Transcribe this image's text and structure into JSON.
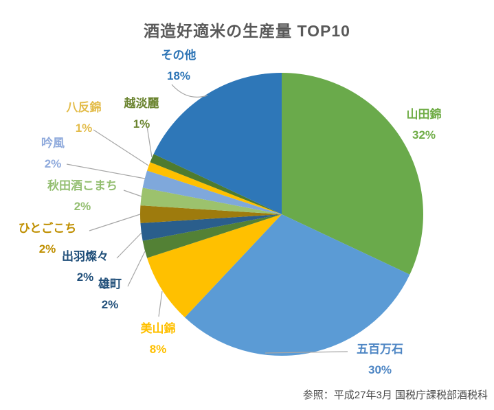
{
  "title": "酒造好適米の生産量 TOP10",
  "source_note": "参照：平成27年3月 国税庁課税部酒税科",
  "chart_data": {
    "type": "pie",
    "title": "酒造好適米の生産量 TOP10",
    "unit": "percent",
    "start_angle_deg": 0,
    "direction": "clockwise",
    "legend_position": "none",
    "labels_position": "outside-with-leader-lines",
    "annotation": "参照：平成27年3月 国税庁課税部酒税科",
    "leader_line_color": "#a6a6a6",
    "slices": [
      {
        "label": "山田錦",
        "value": 32,
        "display_value": "32%",
        "color": "#6AAA4B",
        "label_color": "#70AD47"
      },
      {
        "label": "五百万石",
        "value": 30,
        "display_value": "30%",
        "color": "#5B9BD5",
        "label_color": "#4E86C4"
      },
      {
        "label": "美山錦",
        "value": 8,
        "display_value": "8%",
        "color": "#FFC000",
        "label_color": "#FFC000"
      },
      {
        "label": "雄町",
        "value": 2,
        "display_value": "2%",
        "color": "#538135",
        "label_color": "#1F4E79"
      },
      {
        "label": "出羽燦々",
        "value": 2,
        "display_value": "2%",
        "color": "#2A5E8C",
        "label_color": "#1F4E79"
      },
      {
        "label": "ひとごこち",
        "value": 2,
        "display_value": "2%",
        "color": "#9E7B0D",
        "label_color": "#BF8F00"
      },
      {
        "label": "秋田酒こまち",
        "value": 2,
        "display_value": "2%",
        "color": "#9CC26D",
        "label_color": "#93BE70"
      },
      {
        "label": "吟風",
        "value": 2,
        "display_value": "2%",
        "color": "#7FA8DB",
        "label_color": "#8FAADC"
      },
      {
        "label": "八反錦",
        "value": 1,
        "display_value": "1%",
        "color": "#FFC000",
        "label_color": "#E3BC4A"
      },
      {
        "label": "越淡麗",
        "value": 1,
        "display_value": "1%",
        "color": "#4E7B2F",
        "label_color": "#6B8430"
      },
      {
        "label": "その他",
        "value": 18,
        "display_value": "18%",
        "color": "#2E77B8",
        "label_color": "#2E75B6"
      }
    ]
  }
}
